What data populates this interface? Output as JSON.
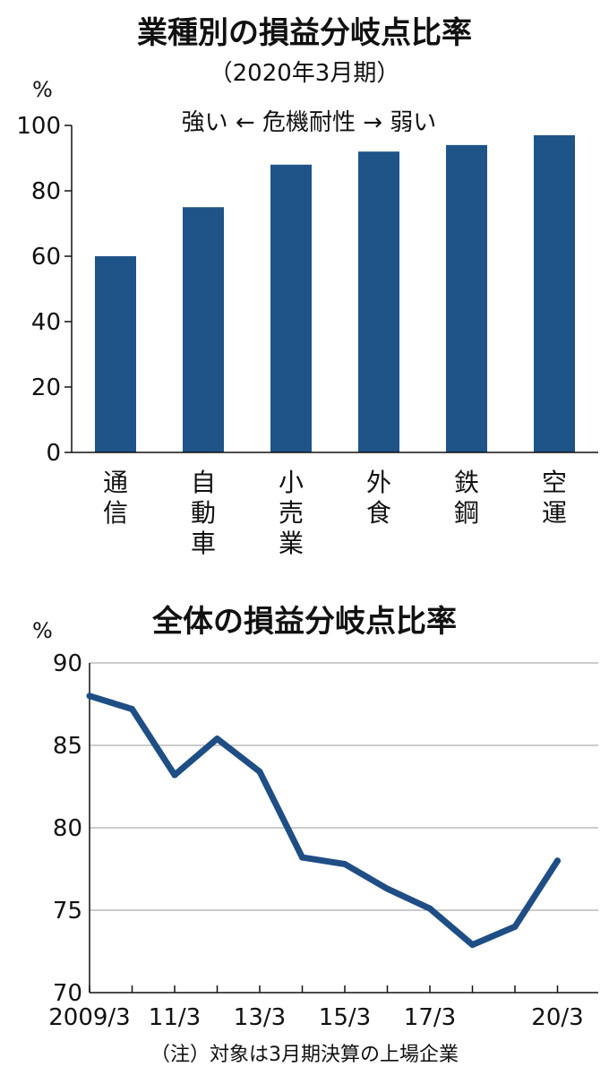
{
  "colors": {
    "bar": "#1f5489",
    "line": "#1f4e85"
  },
  "chart_data": [
    {
      "type": "bar",
      "title": "業種別の損益分岐点比率",
      "subtitle": "（2020年3月期）",
      "ylabel": "%",
      "annotation": "強い ← 危機耐性 → 弱い",
      "categories": [
        "通信",
        "自動車",
        "小売業",
        "外食",
        "鉄鋼",
        "空運"
      ],
      "values": [
        60,
        75,
        88,
        92,
        94,
        97
      ],
      "ylim": [
        0,
        100
      ],
      "yticks": [
        0,
        20,
        40,
        60,
        80,
        100
      ]
    },
    {
      "type": "line",
      "title": "全体の損益分岐点比率",
      "ylabel": "%",
      "x": [
        "2009/3",
        "10/3",
        "11/3",
        "12/3",
        "13/3",
        "14/3",
        "15/3",
        "16/3",
        "17/3",
        "18/3",
        "19/3",
        "20/3"
      ],
      "xtick_labels": [
        "2009/3",
        "",
        "11/3",
        "",
        "13/3",
        "",
        "15/3",
        "",
        "17/3",
        "",
        "",
        "20/3"
      ],
      "values": [
        88.0,
        87.2,
        83.2,
        85.4,
        83.4,
        78.2,
        77.8,
        76.3,
        75.1,
        72.9,
        74.0,
        78.0
      ],
      "ylim": [
        70,
        90
      ],
      "yticks": [
        70,
        75,
        80,
        85,
        90
      ],
      "note": "（注）対象は3月期決算の上場企業"
    }
  ]
}
